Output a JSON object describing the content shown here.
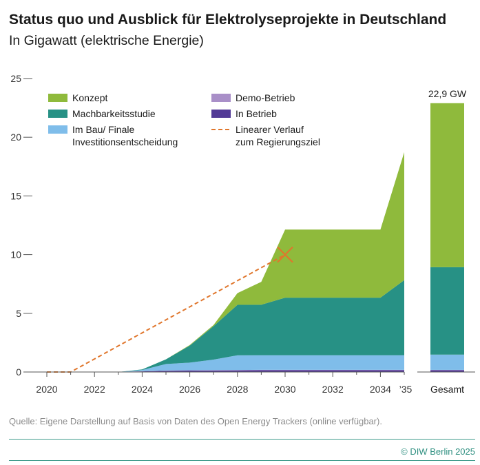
{
  "header": {
    "title": "Status quo und Ausblick für Elektrolyseprojekte in Deutschland",
    "subtitle": "In Gigawatt (elektrische Energie)"
  },
  "footer": {
    "source": "Quelle: Eigene Darstellung auf Basis von Daten des Open Energy Trackers (online verfügbar).",
    "copyright": "© DIW Berlin 2025"
  },
  "colors": {
    "konzept": "#8fba3c",
    "machbarkeit": "#279185",
    "imbau": "#7fbdea",
    "demo": "#a98fc8",
    "inbetrieb": "#523a96",
    "target": "#e0762c",
    "axis": "#555555"
  },
  "chart_data": {
    "type": "area",
    "title": "Status quo und Ausblick für Elektrolyseprojekte in Deutschland",
    "subtitle": "In Gigawatt (elektrische Energie)",
    "ylim": [
      0,
      25
    ],
    "yticks": [
      0,
      5,
      10,
      15,
      20,
      25
    ],
    "xlim": [
      2020,
      2035
    ],
    "xticks": [
      "2020",
      "2022",
      "2024",
      "2026",
      "2028",
      "2030",
      "2032",
      "2034",
      "’35"
    ],
    "x_end_label": "’35",
    "grid": false,
    "legend_position": "top-left",
    "x": [
      2020,
      2021,
      2022,
      2023,
      2024,
      2025,
      2026,
      2027,
      2028,
      2029,
      2030,
      2031,
      2032,
      2033,
      2034,
      2035
    ],
    "series": [
      {
        "name": "In Betrieb",
        "key": "inbetrieb",
        "values": [
          0,
          0,
          0,
          0,
          0.05,
          0.1,
          0.12,
          0.13,
          0.14,
          0.15,
          0.15,
          0.15,
          0.15,
          0.15,
          0.15,
          0.15
        ]
      },
      {
        "name": "Demo-Betrieb",
        "key": "demo",
        "values": [
          0,
          0,
          0,
          0,
          0.02,
          0.03,
          0.03,
          0.03,
          0.03,
          0.03,
          0.03,
          0.03,
          0.03,
          0.03,
          0.03,
          0.03
        ]
      },
      {
        "name": "Im Bau/ Finale Investitionsentscheidung",
        "key": "imbau",
        "values": [
          0,
          0,
          0,
          0,
          0.1,
          0.55,
          0.65,
          0.9,
          1.25,
          1.25,
          1.25,
          1.25,
          1.25,
          1.25,
          1.25,
          1.25
        ]
      },
      {
        "name": "Machbarkeitsstudie",
        "key": "machbarkeit",
        "values": [
          0,
          0,
          0,
          0,
          0.05,
          0.4,
          1.45,
          2.85,
          4.3,
          4.3,
          4.9,
          4.9,
          4.9,
          4.9,
          4.9,
          6.4
        ]
      },
      {
        "name": "Konzept",
        "key": "konzept",
        "values": [
          0,
          0,
          0,
          0,
          0,
          0,
          0.05,
          0.1,
          1.0,
          1.95,
          5.8,
          5.8,
          5.8,
          5.8,
          5.8,
          10.9
        ]
      }
    ],
    "target_line": {
      "name": "Linearer Verlauf zum Regierungsziel",
      "x": [
        2020,
        2021,
        2030
      ],
      "y": [
        0,
        0,
        10
      ]
    },
    "target_marker": {
      "x": 2030,
      "y": 10
    },
    "total_bar": {
      "label": "Gesamt",
      "value_label": "22,9 GW",
      "segments": [
        {
          "key": "inbetrieb",
          "value": 0.15
        },
        {
          "key": "demo",
          "value": 0.03
        },
        {
          "key": "imbau",
          "value": 1.3
        },
        {
          "key": "machbarkeit",
          "value": 7.45
        },
        {
          "key": "konzept",
          "value": 13.97
        }
      ]
    },
    "legend": {
      "col1": [
        {
          "key": "konzept",
          "label": "Konzept"
        },
        {
          "key": "machbarkeit",
          "label": "Machbarkeitsstudie"
        },
        {
          "key": "imbau",
          "label": "Im Bau/ Finale",
          "label2": "Investitionsentscheidung"
        }
      ],
      "col2": [
        {
          "key": "demo",
          "label": "Demo-Betrieb"
        },
        {
          "key": "inbetrieb",
          "label": "In Betrieb"
        },
        {
          "key": "target",
          "label": "Linearer Verlauf",
          "label2": "zum Regierungsziel",
          "dashed": true
        }
      ]
    }
  }
}
